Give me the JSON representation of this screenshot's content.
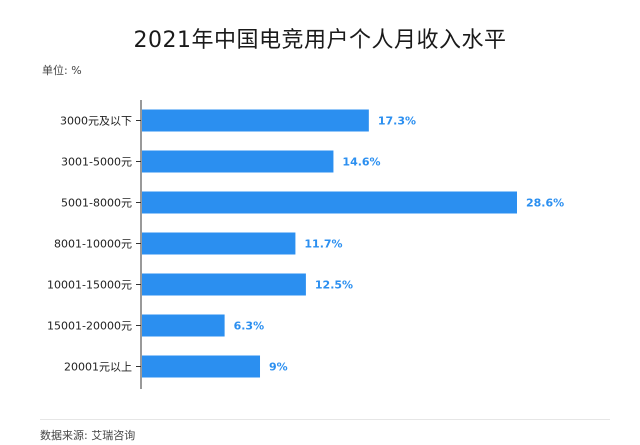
{
  "title": "2021年中国电竞用户个人月收入水平",
  "unit_label": "单位: %",
  "source_label": "数据来源: 艾瑞咨询",
  "colors": {
    "bar": "#2b8ff0",
    "value_label": "#2b8ff0",
    "axis": "#333333",
    "tick_label": "#222222"
  },
  "chart_data": {
    "type": "bar",
    "orientation": "horizontal",
    "title": "2021年中国电竞用户个人月收入水平",
    "unit": "%",
    "categories": [
      "3000元及以下",
      "3001-5000元",
      "5001-8000元",
      "8001-10000元",
      "10001-15000元",
      "15001-20000元",
      "20001元以上"
    ],
    "values": [
      17.3,
      14.6,
      28.6,
      11.7,
      12.5,
      6.3,
      9
    ],
    "value_labels": [
      "17.3%",
      "14.6%",
      "28.6%",
      "11.7%",
      "12.5%",
      "6.3%",
      "9%"
    ],
    "xlim": [
      0,
      30
    ],
    "grid": false,
    "legend": "none"
  }
}
